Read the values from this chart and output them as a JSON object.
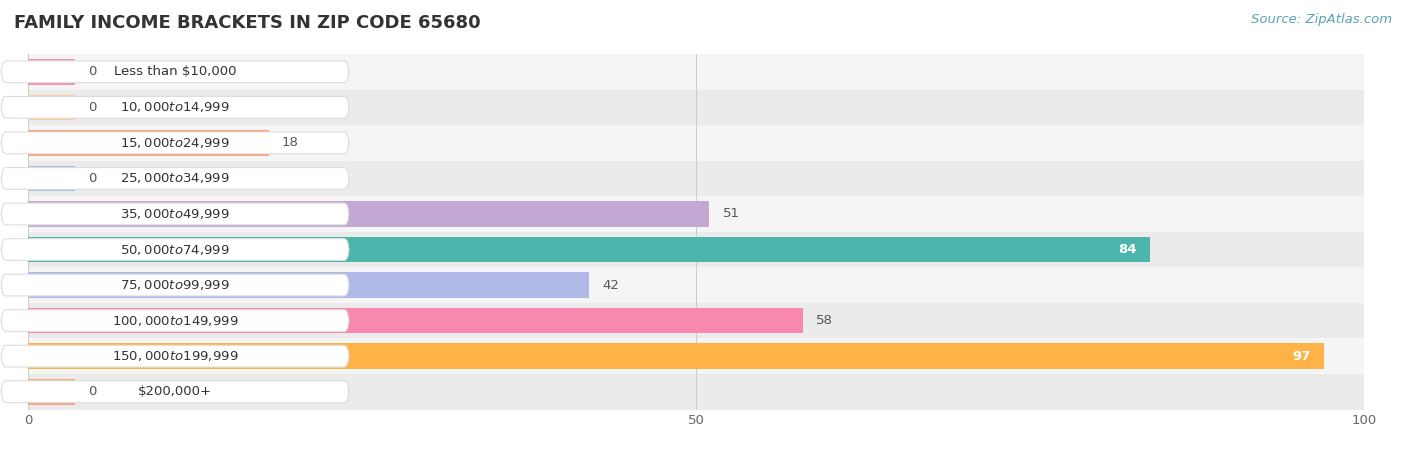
{
  "title": "FAMILY INCOME BRACKETS IN ZIP CODE 65680",
  "source": "Source: ZipAtlas.com",
  "categories": [
    "Less than $10,000",
    "$10,000 to $14,999",
    "$15,000 to $24,999",
    "$25,000 to $34,999",
    "$35,000 to $49,999",
    "$50,000 to $74,999",
    "$75,000 to $99,999",
    "$100,000 to $149,999",
    "$150,000 to $199,999",
    "$200,000+"
  ],
  "values": [
    0,
    0,
    18,
    0,
    51,
    84,
    42,
    58,
    97,
    0
  ],
  "bar_colors": [
    "#f48fb1",
    "#ffcc99",
    "#f4a582",
    "#a8c4e0",
    "#c4a8d4",
    "#4db6ac",
    "#b0b8e8",
    "#f888b0",
    "#ffb347",
    "#f4a582"
  ],
  "bar_bg_color": "#eeeeee",
  "background_color": "#ffffff",
  "xlim": [
    0,
    100
  ],
  "title_fontsize": 13,
  "label_fontsize": 9.5,
  "value_fontsize": 9.5,
  "source_fontsize": 9.5,
  "bar_height": 0.72,
  "row_bg_colors": [
    "#f5f5f5",
    "#ebebeb"
  ]
}
